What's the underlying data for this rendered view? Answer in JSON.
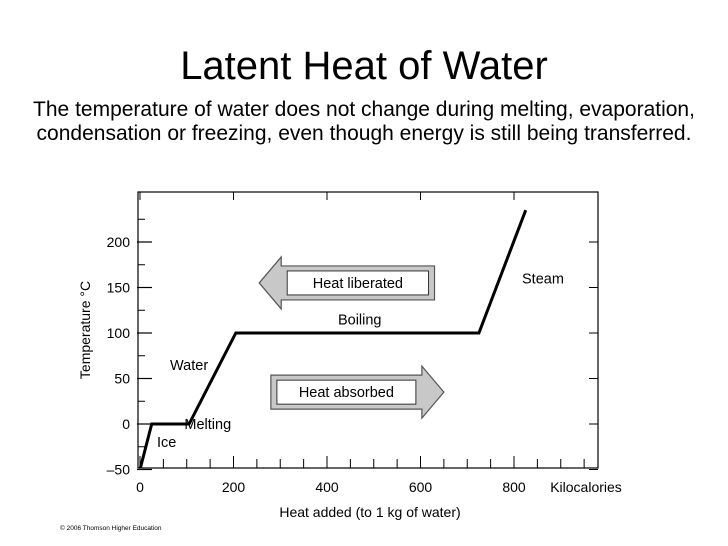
{
  "slide": {
    "title": "Latent Heat of Water",
    "subtitle": "The temperature of water does not change during melting, evaporation, condensation or freezing, even though energy is still being transferred.",
    "copyright": "© 2006 Thomson Higher Education"
  },
  "chart_data": {
    "type": "line",
    "xlabel": "Heat added (to 1 kg of water)",
    "ylabel": "Temperature °C",
    "x_unit_label": "Kilocalories",
    "xlim": [
      0,
      1000
    ],
    "ylim": [
      -50,
      235
    ],
    "x_ticks": [
      0,
      200,
      400,
      600,
      800
    ],
    "y_ticks": [
      -50,
      0,
      50,
      100,
      150,
      200
    ],
    "x_tick_labels": [
      "0",
      "200",
      "400",
      "600",
      "800"
    ],
    "y_tick_labels": [
      "–50",
      "0",
      "50",
      "100",
      "150",
      "200"
    ],
    "grid": false,
    "series": [
      {
        "x": [
          0,
          25,
          105,
          205,
          725,
          825
        ],
        "y": [
          -50,
          0,
          0,
          100,
          100,
          235
        ]
      }
    ],
    "annotations": [
      {
        "text": "Ice",
        "x": 57,
        "y": -20
      },
      {
        "text": "Melting",
        "x": 145,
        "y": 0
      },
      {
        "text": "Water",
        "x": 105,
        "y": 65
      },
      {
        "text": "Boiling",
        "x": 470,
        "y": 115
      },
      {
        "text": "Steam",
        "x": 862,
        "y": 160
      }
    ],
    "arrows": [
      {
        "text": "Heat liberated",
        "direction": "left",
        "x_start": 255,
        "x_end": 630,
        "y": 155
      },
      {
        "text": "Heat absorbed",
        "direction": "right",
        "x_start": 280,
        "x_end": 650,
        "y": 35
      }
    ],
    "colors": {
      "line": "#000000",
      "arrow_fill": "#c8c8c8",
      "arrow_stroke": "#555555"
    }
  }
}
